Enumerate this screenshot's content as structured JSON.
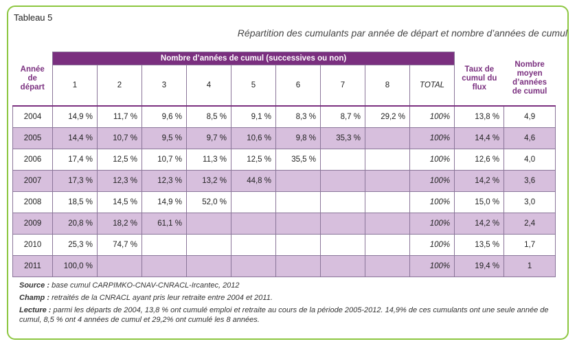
{
  "label": "Tableau 5",
  "title": "Répartition des cumulants par année de départ et nombre d’années de cumul",
  "table": {
    "row_header": "Année de départ",
    "group_header": "Nombre d’années de cumul (successives ou non)",
    "columns": [
      "1",
      "2",
      "3",
      "4",
      "5",
      "6",
      "7",
      "8",
      "TOTAL"
    ],
    "rate_header": "Taux de cumul du flux",
    "avg_header": "Nombre moyen d’années de cumul",
    "rows": [
      {
        "year": "2004",
        "cells": [
          "14,9 %",
          "11,7 %",
          "9,6 %",
          "8,5 %",
          "9,1 %",
          "8,3 %",
          "8,7 %",
          "29,2 %"
        ],
        "total": "100%",
        "rate": "13,8 %",
        "avg": "4,9"
      },
      {
        "year": "2005",
        "cells": [
          "14,4 %",
          "10,7 %",
          "9,5 %",
          "9,7 %",
          "10,6 %",
          "9,8 %",
          "35,3 %",
          ""
        ],
        "total": "100%",
        "rate": "14,4 %",
        "avg": "4,6"
      },
      {
        "year": "2006",
        "cells": [
          "17,4 %",
          "12,5 %",
          "10,7 %",
          "11,3 %",
          "12,5 %",
          "35,5 %",
          "",
          ""
        ],
        "total": "100%",
        "rate": "12,6 %",
        "avg": "4,0"
      },
      {
        "year": "2007",
        "cells": [
          "17,3 %",
          "12,3 %",
          "12,3 %",
          "13,2 %",
          "44,8 %",
          "",
          "",
          ""
        ],
        "total": "100%",
        "rate": "14,2 %",
        "avg": "3,6"
      },
      {
        "year": "2008",
        "cells": [
          "18,5 %",
          "14,5 %",
          "14,9 %",
          "52,0 %",
          "",
          "",
          "",
          ""
        ],
        "total": "100%",
        "rate": "15,0 %",
        "avg": "3,0"
      },
      {
        "year": "2009",
        "cells": [
          "20,8 %",
          "18,2 %",
          "61,1 %",
          "",
          "",
          "",
          "",
          ""
        ],
        "total": "100%",
        "rate": "14,2 %",
        "avg": "2,4"
      },
      {
        "year": "2010",
        "cells": [
          "25,3 %",
          "74,7 %",
          "",
          "",
          "",
          "",
          "",
          ""
        ],
        "total": "100%",
        "rate": "13,5 %",
        "avg": "1,7"
      },
      {
        "year": "2011",
        "cells": [
          "100,0 %",
          "",
          "",
          "",
          "",
          "",
          "",
          ""
        ],
        "total": "100%",
        "rate": "19,4 %",
        "avg": "1"
      }
    ]
  },
  "notes": {
    "source_label": "Source :",
    "source_text": "base cumul CARPIMKO-CNAV-CNRACL-Ircantec, 2012",
    "champ_label": "Champ :",
    "champ_text": "retraités de la CNRACL ayant pris leur retraite entre 2004 et 2011.",
    "lecture_label": "Lecture :",
    "lecture_text": "parmi les départs de 2004, 13,8 % ont cumulé emploi et retraite au cours de la période 2005-2012. 14,9% de ces cumulants ont une seule année de cumul, 8,5 % ont 4 années de cumul et 29,2% ont cumulé les 8 années."
  },
  "colors": {
    "accent": "#7a2f7f",
    "row_alt": "#d7bfdd",
    "frame": "#8cc63f"
  }
}
